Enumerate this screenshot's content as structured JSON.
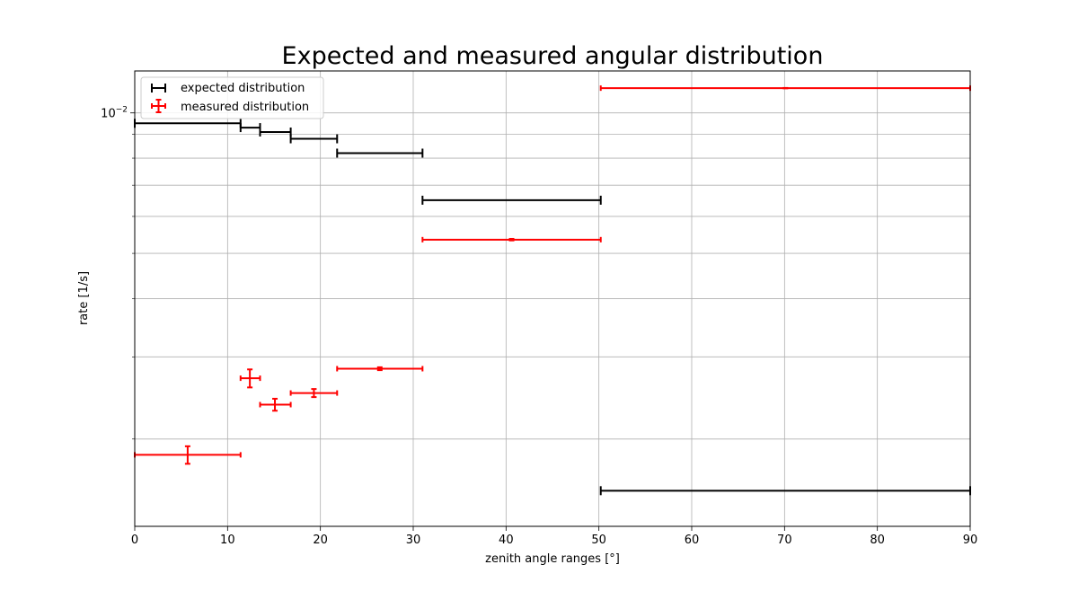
{
  "chart_data": {
    "type": "scatter",
    "title": "Expected and measured angular distribution",
    "xlabel": "zenith angle ranges [°]",
    "ylabel": "rate [1/s]",
    "xlim": [
      0,
      90
    ],
    "ylim": [
      0.0013,
      0.0123
    ],
    "yscale": "log",
    "grid": true,
    "legend_position": "top-left",
    "x_ticks": [
      0,
      10,
      20,
      30,
      40,
      50,
      60,
      70,
      80,
      90
    ],
    "y_tick_labels": [
      {
        "value": 0.01,
        "label": "10",
        "exponent": "−2"
      }
    ],
    "y_minor_ticks": [
      0.002,
      0.003,
      0.004,
      0.005,
      0.006,
      0.007,
      0.008,
      0.009
    ],
    "series": [
      {
        "name": "expected distribution",
        "color": "#000000",
        "points": [
          {
            "xmin": 0,
            "xmax": 11.4,
            "y": 0.0095
          },
          {
            "xmin": 11.4,
            "xmax": 13.5,
            "y": 0.0093
          },
          {
            "xmin": 13.5,
            "xmax": 16.8,
            "y": 0.0091
          },
          {
            "xmin": 16.8,
            "xmax": 21.8,
            "y": 0.0088
          },
          {
            "xmin": 21.8,
            "xmax": 31.0,
            "y": 0.0082
          },
          {
            "xmin": 31.0,
            "xmax": 50.2,
            "y": 0.0065
          },
          {
            "xmin": 50.2,
            "xmax": 90.0,
            "y": 0.00155
          }
        ]
      },
      {
        "name": "measured distribution",
        "color": "#ff0000",
        "points": [
          {
            "x": 5.7,
            "xmin": 0,
            "xmax": 11.4,
            "y": 0.00185,
            "yerr": 8e-05
          },
          {
            "x": 12.4,
            "xmin": 11.4,
            "xmax": 13.5,
            "y": 0.0027,
            "yerr": 0.00012
          },
          {
            "x": 15.1,
            "xmin": 13.5,
            "xmax": 16.8,
            "y": 0.00237,
            "yerr": 7e-05
          },
          {
            "x": 19.3,
            "xmin": 16.8,
            "xmax": 21.8,
            "y": 0.00251,
            "yerr": 5e-05
          },
          {
            "x": 26.4,
            "xmin": 21.8,
            "xmax": 31.0,
            "y": 0.00283,
            "yerr": 2e-05
          },
          {
            "x": 40.6,
            "xmin": 31.0,
            "xmax": 50.2,
            "y": 0.00535,
            "yerr": 2e-05
          },
          {
            "x": 70.1,
            "xmin": 50.2,
            "xmax": 90.0,
            "y": 0.0113,
            "yerr": 1e-05
          }
        ]
      }
    ]
  }
}
